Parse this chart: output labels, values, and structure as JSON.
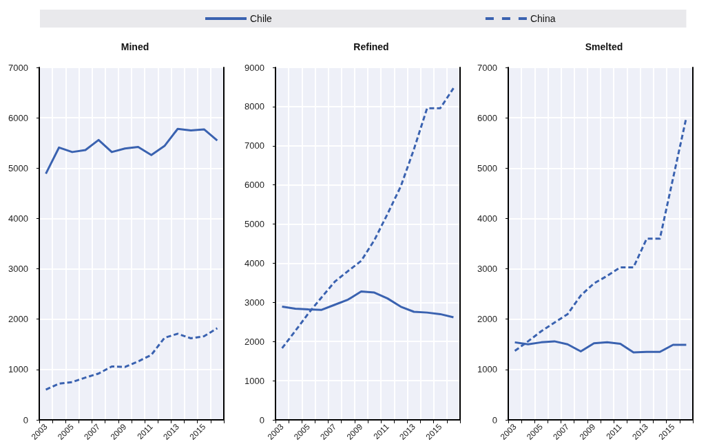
{
  "chart_data": [
    {
      "type": "line",
      "title": "Mined",
      "categories": [
        "2003",
        null,
        "2005",
        null,
        "2007",
        null,
        "2009",
        null,
        "2011",
        null,
        "2013",
        null,
        "2015",
        null
      ],
      "ylim": [
        0,
        7000
      ],
      "yticks": [
        0,
        1000,
        2000,
        3000,
        4000,
        5000,
        6000,
        7000
      ],
      "grid": true,
      "legend": "top",
      "marker": "none",
      "series": [
        {
          "name": "Chile",
          "color": "#3a62b0",
          "line_style": "solid",
          "values": [
            4890,
            5410,
            5320,
            5360,
            5560,
            5320,
            5390,
            5420,
            5260,
            5440,
            5780,
            5750,
            5770,
            5550
          ]
        },
        {
          "name": "China",
          "color": "#3a62b0",
          "line_style": "dashed",
          "values": [
            600,
            720,
            750,
            840,
            920,
            1060,
            1050,
            1160,
            1290,
            1630,
            1710,
            1620,
            1660,
            1820
          ]
        }
      ]
    },
    {
      "type": "line",
      "title": "Refined",
      "categories": [
        "2003",
        null,
        "2005",
        null,
        "2007",
        null,
        "2009",
        null,
        "2011",
        null,
        "2013",
        null,
        "2015",
        null
      ],
      "ylim": [
        0,
        9000
      ],
      "yticks": [
        0,
        1000,
        2000,
        3000,
        4000,
        5000,
        6000,
        7000,
        8000,
        9000
      ],
      "grid": true,
      "marker": "none",
      "series": [
        {
          "color": "#3a62b0",
          "line_style": "solid",
          "values": [
            2890,
            2840,
            2820,
            2810,
            2940,
            3070,
            3280,
            3250,
            3100,
            2890,
            2760,
            2740,
            2700,
            2620
          ]
        },
        {
          "color": "#3a62b0",
          "line_style": "dashed",
          "values": [
            1830,
            2270,
            2720,
            3130,
            3530,
            3800,
            4060,
            4590,
            5260,
            5960,
            6910,
            7960,
            7960,
            8470
          ]
        }
      ]
    },
    {
      "type": "line",
      "title": "Smelted",
      "categories": [
        "2003",
        null,
        "2005",
        null,
        "2007",
        null,
        "2009",
        null,
        "2011",
        null,
        "2013",
        null,
        "2015",
        null
      ],
      "ylim": [
        0,
        7000
      ],
      "yticks": [
        0,
        1000,
        2000,
        3000,
        4000,
        5000,
        6000,
        7000
      ],
      "grid": true,
      "marker": "none",
      "series": [
        {
          "color": "#3a62b0",
          "line_style": "solid",
          "values": [
            1540,
            1500,
            1540,
            1560,
            1500,
            1360,
            1520,
            1540,
            1510,
            1340,
            1350,
            1350,
            1490,
            1490
          ]
        },
        {
          "color": "#3a62b0",
          "line_style": "dashed",
          "values": [
            1370,
            1560,
            1760,
            1930,
            2100,
            2470,
            2710,
            2860,
            3030,
            3030,
            3600,
            3600,
            4800,
            6000
          ]
        }
      ]
    }
  ]
}
